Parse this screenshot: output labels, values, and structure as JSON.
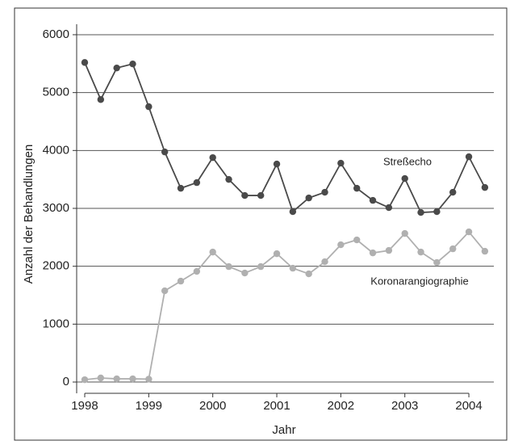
{
  "chart_data": {
    "type": "line",
    "x_label": "Jahr",
    "y_label": "Anzahl der Behandlungen",
    "x": [
      1998,
      1998.25,
      1998.5,
      1998.75,
      1999,
      1999.25,
      1999.5,
      1999.75,
      2000,
      2000.25,
      2000.5,
      2000.75,
      2001,
      2001.25,
      2001.5,
      2001.75,
      2002,
      2002.25,
      2002.5,
      2002.75,
      2003,
      2003.25,
      2003.5,
      2003.75,
      2004,
      2004.25
    ],
    "series": [
      {
        "name": "Streßecho",
        "color": "#4a4a4a",
        "values": [
          5520,
          4880,
          5425,
          5495,
          4756,
          3975,
          3347,
          3445,
          3877,
          3500,
          3222,
          3222,
          3766,
          2943,
          3180,
          3278,
          3780,
          3347,
          3138,
          3013,
          3515,
          2929,
          2943,
          3278,
          3891,
          3361
        ]
      },
      {
        "name": "Koronarangiographie",
        "color": "#b0b0b0",
        "values": [
          40,
          70,
          55,
          55,
          50,
          1576,
          1743,
          1911,
          2245,
          1994,
          1883,
          1994,
          2217,
          1966,
          1869,
          2078,
          2371,
          2455,
          2231,
          2273,
          2566,
          2245,
          2064,
          2301,
          2594,
          2259
        ]
      }
    ],
    "xlim": [
      1997.874,
      2004.39
    ],
    "xticks": [
      1998,
      1999,
      2000,
      2001,
      2002,
      2003,
      2004
    ],
    "ylim": [
      -195,
      6181
    ],
    "yticks": [
      0,
      1000,
      2000,
      3000,
      4000,
      5000,
      6000
    ],
    "grid": true
  }
}
